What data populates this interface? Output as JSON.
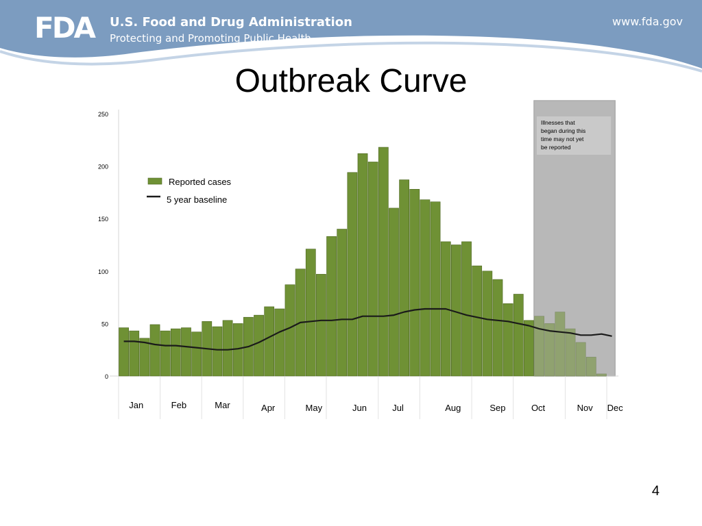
{
  "header": {
    "logo_text": "FDA",
    "agency": "U.S. Food and Drug Administration",
    "tagline": "Protecting and Promoting Public Health",
    "url": "www.fda.gov"
  },
  "slide": {
    "title": "Outbreak Curve",
    "page_number": "4"
  },
  "colors": {
    "banner": "#7c9cc0",
    "bar": "#6f9135",
    "bar_border": "#4b6520",
    "baseline": "#1a1a1a",
    "shade": "#b9b9b9"
  },
  "chart_data": {
    "type": "bar",
    "title": "",
    "xlabel": "",
    "ylabel": "",
    "ylim": [
      0,
      250
    ],
    "y_ticks": [
      0,
      50,
      100,
      150,
      200,
      250
    ],
    "legend_position": "top-left",
    "series": [
      {
        "name": "Reported cases",
        "values": [
          46,
          43,
          36,
          49,
          43,
          45,
          46,
          42,
          52,
          47,
          53,
          50,
          56,
          58,
          66,
          64,
          87,
          102,
          121,
          97,
          133,
          140,
          194,
          212,
          204,
          218,
          160,
          187,
          178,
          168,
          166,
          128,
          125,
          128,
          105,
          100,
          92,
          69,
          78,
          53,
          57,
          50,
          61,
          45,
          32,
          18,
          2
        ]
      },
      {
        "name": "5 year baseline",
        "type": "line",
        "values": [
          33,
          33,
          32,
          30,
          29,
          29,
          28,
          27,
          26,
          25,
          25,
          26,
          28,
          32,
          37,
          42,
          46,
          51,
          52,
          53,
          53,
          54,
          54,
          57,
          57,
          57,
          58,
          61,
          63,
          64,
          64,
          64,
          61,
          58,
          56,
          54,
          53,
          52,
          50,
          48,
          45,
          43,
          42,
          41,
          39,
          39,
          40,
          38
        ]
      }
    ],
    "months": [
      {
        "label": "Jan",
        "week": 1.7
      },
      {
        "label": "Feb",
        "week": 5.8
      },
      {
        "label": "Mar",
        "week": 10.0
      },
      {
        "label": "Apr",
        "week": 14.4
      },
      {
        "label": "May",
        "week": 18.8
      },
      {
        "label": "Jun",
        "week": 23.2
      },
      {
        "label": "Jul",
        "week": 26.9
      },
      {
        "label": "Aug",
        "week": 32.2
      },
      {
        "label": "Sep",
        "week": 36.5
      },
      {
        "label": "Oct",
        "week": 40.4
      },
      {
        "label": "Nov",
        "week": 44.9
      },
      {
        "label": "Dec",
        "week": 47.8
      }
    ],
    "shaded_from_week": 41,
    "annotation": "Illnesses that began during this time may not yet be reported"
  }
}
